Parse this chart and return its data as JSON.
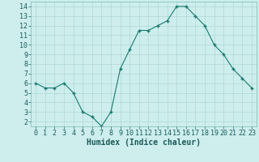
{
  "x": [
    0,
    1,
    2,
    3,
    4,
    5,
    6,
    7,
    8,
    9,
    10,
    11,
    12,
    13,
    14,
    15,
    16,
    17,
    18,
    19,
    20,
    21,
    22,
    23
  ],
  "y": [
    6.0,
    5.5,
    5.5,
    6.0,
    5.0,
    3.0,
    2.5,
    1.5,
    3.0,
    7.5,
    9.5,
    11.5,
    11.5,
    12.0,
    12.5,
    14.0,
    14.0,
    13.0,
    12.0,
    10.0,
    9.0,
    7.5,
    6.5,
    5.5
  ],
  "line_color": "#1a7a6e",
  "marker": "+",
  "marker_size": 3,
  "marker_linewidth": 1.0,
  "bg_color": "#cdeeed",
  "grid_color": "#b0d8d4",
  "xlabel": "Humidex (Indice chaleur)",
  "ylim": [
    1.5,
    14.5
  ],
  "xlim": [
    -0.5,
    23.5
  ],
  "yticks": [
    2,
    3,
    4,
    5,
    6,
    7,
    8,
    9,
    10,
    11,
    12,
    13,
    14
  ],
  "xticks": [
    0,
    1,
    2,
    3,
    4,
    5,
    6,
    7,
    8,
    9,
    10,
    11,
    12,
    13,
    14,
    15,
    16,
    17,
    18,
    19,
    20,
    21,
    22,
    23
  ],
  "label_fontsize": 7,
  "tick_fontsize": 6,
  "linewidth": 0.8
}
